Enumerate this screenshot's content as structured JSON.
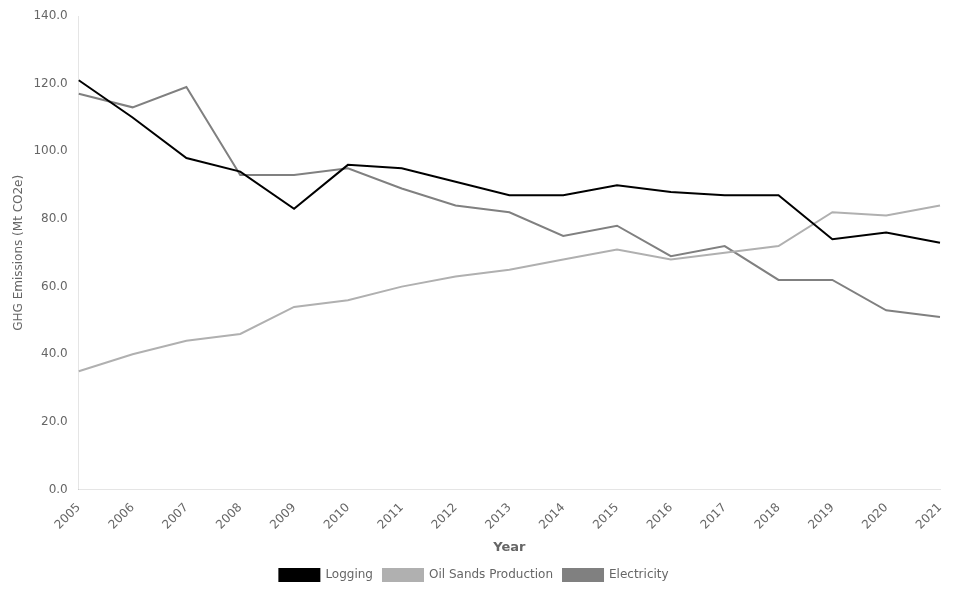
{
  "chart_data": {
    "type": "line",
    "xlabel": "Year",
    "ylabel": "GHG Emissions (Mt CO2e)",
    "categories": [
      "2005",
      "2006",
      "2007",
      "2008",
      "2009",
      "2010",
      "2011",
      "2012",
      "2013",
      "2014",
      "2015",
      "2016",
      "2017",
      "2018",
      "2019",
      "2020",
      "2021"
    ],
    "series": [
      {
        "name": "Logging",
        "color": "#000000",
        "values": [
          121,
          110,
          98,
          94,
          83,
          96,
          95,
          91,
          87,
          87,
          90,
          88,
          87,
          87,
          74,
          76,
          73
        ]
      },
      {
        "name": "Oil Sands Production",
        "color": "#b0b0b0",
        "values": [
          35,
          40,
          44,
          46,
          54,
          56,
          60,
          63,
          65,
          68,
          71,
          68,
          70,
          72,
          82,
          81,
          84
        ]
      },
      {
        "name": "Electricity",
        "color": "#808080",
        "values": [
          117,
          113,
          119,
          93,
          93,
          95,
          89,
          84,
          82,
          75,
          78,
          69,
          72,
          62,
          62,
          53,
          51
        ]
      }
    ],
    "ylim": [
      0,
      140
    ],
    "yticks": [
      {
        "value": 0,
        "label": "0.0"
      },
      {
        "value": 20,
        "label": "20.0"
      },
      {
        "value": 40,
        "label": "40.0"
      },
      {
        "value": 60,
        "label": "60.0"
      },
      {
        "value": 80,
        "label": "80.0"
      },
      {
        "value": 100,
        "label": "100.0"
      },
      {
        "value": 120,
        "label": "120.0"
      },
      {
        "value": 140,
        "label": "140.0"
      }
    ],
    "grid": false,
    "legend": "bottom"
  }
}
